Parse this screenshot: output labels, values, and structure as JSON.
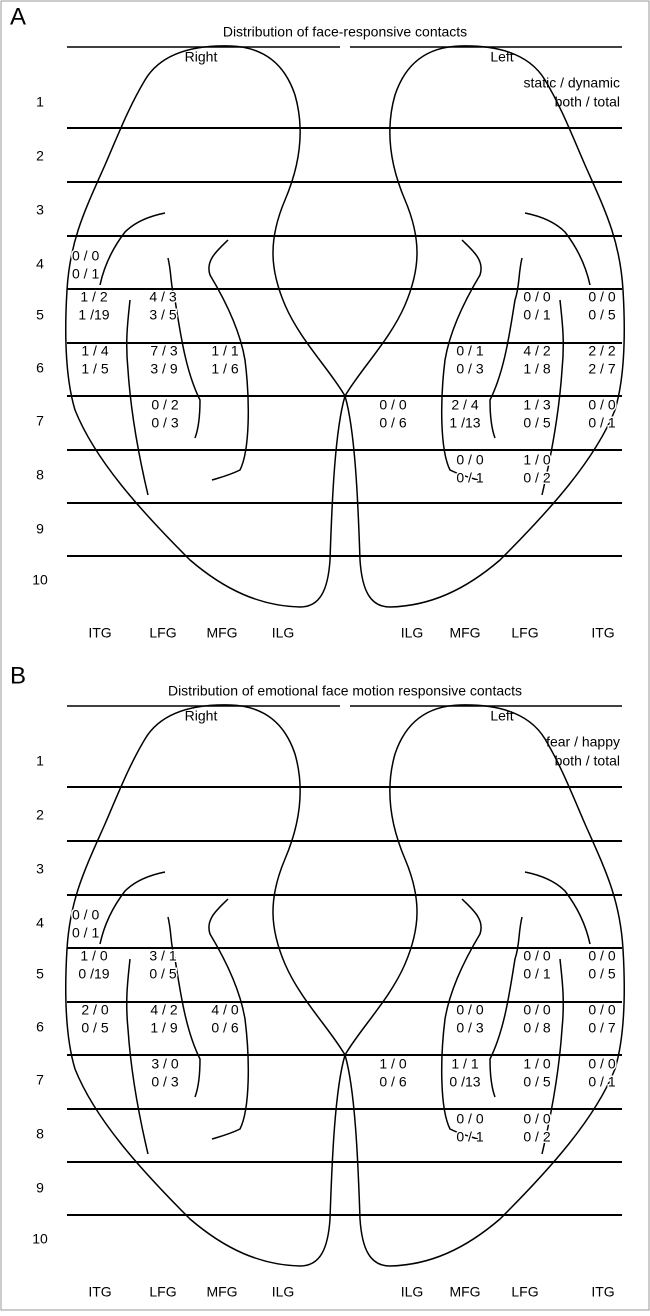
{
  "panels": [
    {
      "letter": "A",
      "title": "Distribution of face-responsive contacts",
      "right": "Right",
      "left": "Left",
      "legend": [
        "static / dynamic",
        "both / total"
      ],
      "rows": [
        1,
        2,
        3,
        4,
        5,
        6,
        7,
        8,
        9,
        10
      ],
      "cells": [
        {
          "top": "0 / 0",
          "bottom": "0 / 1"
        },
        {
          "top": "1 / 2",
          "bottom": "1 /19"
        },
        {
          "top": "4 / 3",
          "bottom": "3 / 5"
        },
        {
          "top": "0 / 0",
          "bottom": "0 / 1"
        },
        {
          "top": "0 / 0",
          "bottom": "0 / 5"
        },
        {
          "top": "1 / 4",
          "bottom": "1 / 5"
        },
        {
          "top": "7 / 3",
          "bottom": "3 / 9"
        },
        {
          "top": "1 / 1",
          "bottom": "1 / 6"
        },
        {
          "top": "0 / 1",
          "bottom": "0 / 3"
        },
        {
          "top": "4 / 2",
          "bottom": "1 / 8"
        },
        {
          "top": "2 / 2",
          "bottom": "2 / 7"
        },
        {
          "top": "0 / 2",
          "bottom": "0 / 3"
        },
        {
          "top": "0 / 0",
          "bottom": "0 / 6"
        },
        {
          "top": "2 / 4",
          "bottom": "1 /13"
        },
        {
          "top": "1 / 3",
          "bottom": "0 / 5"
        },
        {
          "top": "0 / 0",
          "bottom": "0 / 1"
        },
        {
          "top": "0 / 0",
          "bottom": "0 / 1"
        },
        {
          "top": "1 / 0",
          "bottom": "0 / 2"
        }
      ],
      "gyri": [
        "ITG",
        "LFG",
        "MFG",
        "ILG",
        "ILG",
        "MFG",
        "LFG",
        "ITG"
      ]
    },
    {
      "letter": "B",
      "title": "Distribution of emotional face motion responsive contacts",
      "right": "Right",
      "left": "Left",
      "legend": [
        "fear / happy",
        "both / total"
      ],
      "rows": [
        1,
        2,
        3,
        4,
        5,
        6,
        7,
        8,
        9,
        10
      ],
      "cells": [
        {
          "top": "0 / 0",
          "bottom": "0 / 1"
        },
        {
          "top": "1 / 0",
          "bottom": "0 /19"
        },
        {
          "top": "3 / 1",
          "bottom": "0 / 5"
        },
        {
          "top": "0 / 0",
          "bottom": "0 / 1"
        },
        {
          "top": "0 / 0",
          "bottom": "0 / 5"
        },
        {
          "top": "2 / 0",
          "bottom": "0 / 5"
        },
        {
          "top": "4 / 2",
          "bottom": "1 / 9"
        },
        {
          "top": "4 / 0",
          "bottom": "0 / 6"
        },
        {
          "top": "0 / 0",
          "bottom": "0 / 3"
        },
        {
          "top": "0 / 0",
          "bottom": "0 / 8"
        },
        {
          "top": "0 / 0",
          "bottom": "0 / 7"
        },
        {
          "top": "3 / 0",
          "bottom": "0 / 3"
        },
        {
          "top": "1 / 0",
          "bottom": "0 / 6"
        },
        {
          "top": "1 / 1",
          "bottom": "0 /13"
        },
        {
          "top": "1 / 0",
          "bottom": "0 / 5"
        },
        {
          "top": "0 / 0",
          "bottom": "0 / 1"
        },
        {
          "top": "0 / 0",
          "bottom": "0 / 1"
        },
        {
          "top": "0 / 0",
          "bottom": "0 / 2"
        }
      ],
      "gyri": [
        "ITG",
        "LFG",
        "MFG",
        "ILG",
        "ILG",
        "MFG",
        "LFG",
        "ITG"
      ]
    }
  ]
}
